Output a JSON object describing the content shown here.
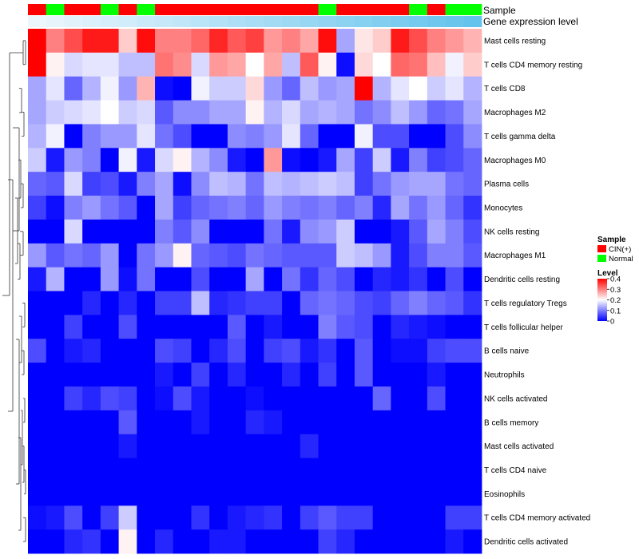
{
  "chart_data": {
    "type": "heatmap",
    "title": "",
    "annotation_labels": [
      "Sample",
      "Gene expression level"
    ],
    "rows": [
      "Mast cells resting",
      "T cells CD4 memory resting",
      "T cells CD8",
      "Macrophages M2",
      "T cells gamma delta",
      "Macrophages M0",
      "Plasma cells",
      "Monocytes",
      "NK cells resting",
      "Macrophages M1",
      "Dendritic cells resting",
      "T cells regulatory  Tregs",
      "T cells follicular helper",
      "B cells naive",
      "Neutrophils",
      "NK cells activated",
      "B cells memory",
      "Mast cells activated",
      "T cells CD4 naive",
      "Eosinophils",
      "T cells CD4 memory activated",
      "Dendritic cells activated"
    ],
    "sample_groups": [
      "CIN(+)",
      "Normal",
      "CIN(+)",
      "CIN(+)",
      "Normal",
      "CIN(+)",
      "Normal",
      "CIN(+)",
      "CIN(+)",
      "CIN(+)",
      "CIN(+)",
      "CIN(+)",
      "CIN(+)",
      "CIN(+)",
      "CIN(+)",
      "CIN(+)",
      "Normal",
      "CIN(+)",
      "CIN(+)",
      "CIN(+)",
      "CIN(+)",
      "Normal",
      "CIN(+)",
      "Normal",
      "Normal"
    ],
    "gene_expression_level": [
      0.02,
      0.05,
      0.09,
      0.13,
      0.17,
      0.2,
      0.24,
      0.28,
      0.32,
      0.36,
      0.4,
      0.44,
      0.48,
      0.52,
      0.56,
      0.6,
      0.64,
      0.68,
      0.72,
      0.76,
      0.8,
      0.84,
      0.88,
      0.92,
      0.96
    ],
    "values": [
      [
        0.4,
        0.3,
        0.34,
        0.38,
        0.38,
        0.24,
        0.39,
        0.3,
        0.3,
        0.32,
        0.37,
        0.33,
        0.35,
        0.28,
        0.3,
        0.27,
        0.39,
        0.13,
        0.22,
        0.24,
        0.38,
        0.34,
        0.3,
        0.28,
        0.26
      ],
      [
        0.4,
        0.21,
        0.17,
        0.18,
        0.18,
        0.15,
        0.15,
        0.31,
        0.29,
        0.17,
        0.28,
        0.27,
        0.2,
        0.27,
        0.15,
        0.33,
        0.21,
        0.01,
        0.23,
        0.2,
        0.32,
        0.31,
        0.25,
        0.19,
        0.24
      ],
      [
        0.13,
        0.18,
        0.08,
        0.14,
        0.19,
        0.12,
        0.26,
        0.01,
        0.0,
        0.19,
        0.16,
        0.16,
        0.23,
        0.12,
        0.08,
        0.15,
        0.12,
        0.13,
        0.4,
        0.14,
        0.18,
        0.2,
        0.16,
        0.18,
        0.14
      ],
      [
        0.13,
        0.16,
        0.17,
        0.18,
        0.2,
        0.16,
        0.17,
        0.07,
        0.11,
        0.11,
        0.13,
        0.13,
        0.21,
        0.14,
        0.17,
        0.13,
        0.14,
        0.13,
        0.09,
        0.11,
        0.15,
        0.12,
        0.08,
        0.09,
        0.13
      ],
      [
        0.14,
        0.19,
        0.0,
        0.1,
        0.12,
        0.12,
        0.18,
        0.09,
        0.06,
        0.0,
        0.0,
        0.11,
        0.1,
        0.12,
        0.18,
        0.08,
        0.0,
        0.0,
        0.19,
        0.06,
        0.06,
        0.0,
        0.0,
        0.06,
        0.11
      ],
      [
        0.16,
        0.02,
        0.12,
        0.1,
        0.0,
        0.19,
        0.02,
        0.17,
        0.21,
        0.14,
        0.11,
        0.02,
        0.0,
        0.28,
        0.01,
        0.0,
        0.02,
        0.13,
        0.05,
        0.16,
        0.02,
        0.1,
        0.05,
        0.06,
        0.08
      ],
      [
        0.08,
        0.07,
        0.17,
        0.05,
        0.06,
        0.02,
        0.1,
        0.13,
        0.01,
        0.11,
        0.15,
        0.14,
        0.09,
        0.15,
        0.14,
        0.15,
        0.16,
        0.15,
        0.05,
        0.09,
        0.12,
        0.13,
        0.13,
        0.09,
        0.08
      ],
      [
        0.05,
        0.01,
        0.1,
        0.12,
        0.09,
        0.07,
        0.0,
        0.13,
        0.05,
        0.08,
        0.09,
        0.1,
        0.08,
        0.12,
        0.1,
        0.09,
        0.1,
        0.08,
        0.1,
        0.03,
        0.13,
        0.09,
        0.12,
        0.08,
        0.04
      ],
      [
        0.0,
        0.0,
        0.17,
        0.0,
        0.0,
        0.0,
        0.0,
        0.1,
        0.07,
        0.11,
        0.0,
        0.0,
        0.0,
        0.09,
        0.02,
        0.11,
        0.12,
        0.16,
        0.0,
        0.0,
        0.02,
        0.07,
        0.13,
        0.1,
        0.06
      ],
      [
        0.12,
        0.07,
        0.09,
        0.08,
        0.12,
        0.0,
        0.09,
        0.12,
        0.21,
        0.08,
        0.07,
        0.06,
        0.09,
        0.08,
        0.07,
        0.07,
        0.07,
        0.16,
        0.15,
        0.12,
        0.02,
        0.06,
        0.1,
        0.1,
        0.07
      ],
      [
        0.02,
        0.14,
        0.0,
        0.0,
        0.12,
        0.01,
        0.09,
        0.0,
        0.0,
        0.06,
        0.0,
        0.0,
        0.13,
        0.0,
        0.09,
        0.04,
        0.08,
        0.06,
        0.0,
        0.03,
        0.02,
        0.04,
        0.0,
        0.06,
        0.0
      ],
      [
        0.0,
        0.0,
        0.0,
        0.03,
        0.0,
        0.03,
        0.0,
        0.05,
        0.05,
        0.15,
        0.03,
        0.04,
        0.05,
        0.05,
        0.0,
        0.08,
        0.09,
        0.08,
        0.06,
        0.05,
        0.08,
        0.1,
        0.08,
        0.07,
        0.04
      ],
      [
        0.0,
        0.0,
        0.05,
        0.0,
        0.0,
        0.06,
        0.0,
        0.0,
        0.0,
        0.0,
        0.0,
        0.07,
        0.0,
        0.02,
        0.0,
        0.0,
        0.1,
        0.07,
        0.06,
        0.0,
        0.03,
        0.02,
        0.01,
        0.0,
        0.0
      ],
      [
        0.06,
        0.0,
        0.02,
        0.03,
        0.0,
        0.0,
        0.0,
        0.06,
        0.05,
        0.0,
        0.03,
        0.06,
        0.0,
        0.05,
        0.06,
        0.02,
        0.04,
        0.0,
        0.07,
        0.0,
        0.01,
        0.01,
        0.05,
        0.06,
        0.06
      ],
      [
        0.0,
        0.0,
        0.0,
        0.0,
        0.0,
        0.0,
        0.0,
        0.02,
        0.0,
        0.05,
        0.0,
        0.03,
        0.0,
        0.0,
        0.03,
        0.0,
        0.05,
        0.0,
        0.07,
        0.0,
        0.0,
        0.0,
        0.02,
        0.0,
        0.0
      ],
      [
        0.0,
        0.0,
        0.05,
        0.03,
        0.06,
        0.05,
        0.0,
        0.01,
        0.06,
        0.02,
        0.0,
        0.0,
        0.01,
        0.0,
        0.0,
        0.0,
        0.0,
        0.0,
        0.0,
        0.08,
        0.0,
        0.0,
        0.06,
        0.0,
        0.0
      ],
      [
        0.0,
        0.0,
        0.0,
        0.0,
        0.0,
        0.07,
        0.0,
        0.0,
        0.0,
        0.02,
        0.0,
        0.0,
        0.03,
        0.02,
        0.0,
        0.0,
        0.0,
        0.0,
        0.0,
        0.0,
        0.0,
        0.0,
        0.0,
        0.0,
        0.0
      ],
      [
        0.0,
        0.0,
        0.0,
        0.0,
        0.0,
        0.02,
        0.0,
        0.0,
        0.0,
        0.0,
        0.0,
        0.0,
        0.0,
        0.0,
        0.0,
        0.03,
        0.0,
        0.0,
        0.0,
        0.0,
        0.0,
        0.0,
        0.0,
        0.0,
        0.0
      ],
      [
        0.0,
        0.0,
        0.0,
        0.0,
        0.0,
        0.0,
        0.0,
        0.0,
        0.0,
        0.0,
        0.0,
        0.0,
        0.0,
        0.0,
        0.0,
        0.0,
        0.0,
        0.0,
        0.0,
        0.0,
        0.0,
        0.0,
        0.0,
        0.0,
        0.0
      ],
      [
        0.0,
        0.0,
        0.0,
        0.0,
        0.0,
        0.0,
        0.0,
        0.0,
        0.0,
        0.0,
        0.0,
        0.0,
        0.0,
        0.0,
        0.0,
        0.0,
        0.0,
        0.0,
        0.0,
        0.0,
        0.0,
        0.0,
        0.0,
        0.0,
        0.0
      ],
      [
        0.01,
        0.02,
        0.06,
        0.0,
        0.05,
        0.16,
        0.0,
        0.0,
        0.0,
        0.04,
        0.0,
        0.02,
        0.03,
        0.04,
        0.0,
        0.05,
        0.07,
        0.05,
        0.05,
        0.0,
        0.0,
        0.0,
        0.0,
        0.05,
        0.05
      ],
      [
        0.0,
        0.0,
        0.03,
        0.04,
        0.0,
        0.21,
        0.0,
        0.03,
        0.0,
        0.0,
        0.02,
        0.02,
        0.0,
        0.0,
        0.0,
        0.0,
        0.05,
        0.03,
        0.0,
        0.0,
        0.0,
        0.0,
        0.0,
        0.02,
        0.0
      ]
    ],
    "legends": {
      "sample": {
        "title": "Sample",
        "items": [
          {
            "label": "CIN(+)",
            "color": "#ff0000"
          },
          {
            "label": "Normal",
            "color": "#00ff00"
          }
        ]
      },
      "level": {
        "title": "Level",
        "ticks": [
          "0.4",
          "0.3",
          "0.2",
          "0.1",
          "0"
        ],
        "range": [
          0,
          0.4
        ]
      }
    },
    "colors": {
      "low": "#0000ff",
      "mid": "#ffffff",
      "high": "#ff0000",
      "cin": "#ff0000",
      "normal": "#00ff00",
      "expr_low": "#eef7fd",
      "expr_high": "#5ec1ec"
    },
    "legend_position": "right"
  }
}
